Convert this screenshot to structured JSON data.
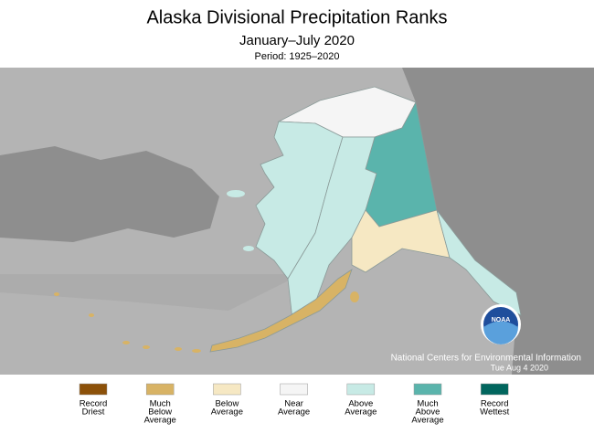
{
  "header": {
    "title": "Alaska Divisional Precipitation Ranks",
    "subtitle": "January–July 2020",
    "period": "Period: 1925–2020"
  },
  "credit": {
    "line1": "National Centers for Environmental Information",
    "line2": "Tue Aug  4 2020",
    "logo": "NOAA"
  },
  "legend": [
    {
      "lines": [
        "Record",
        "Driest"
      ],
      "color": "#8c5109"
    },
    {
      "lines": [
        "Much",
        "Below",
        "Average"
      ],
      "color": "#d8b365"
    },
    {
      "lines": [
        "Below",
        "Average"
      ],
      "color": "#f6e8c3"
    },
    {
      "lines": [
        "Near",
        "Average"
      ],
      "color": "#f5f5f5"
    },
    {
      "lines": [
        "Above",
        "Average"
      ],
      "color": "#c7eae5"
    },
    {
      "lines": [
        "Much",
        "Above",
        "Average"
      ],
      "color": "#5ab4ac"
    },
    {
      "lines": [
        "Record",
        "Wettest"
      ],
      "color": "#01665e"
    }
  ]
}
